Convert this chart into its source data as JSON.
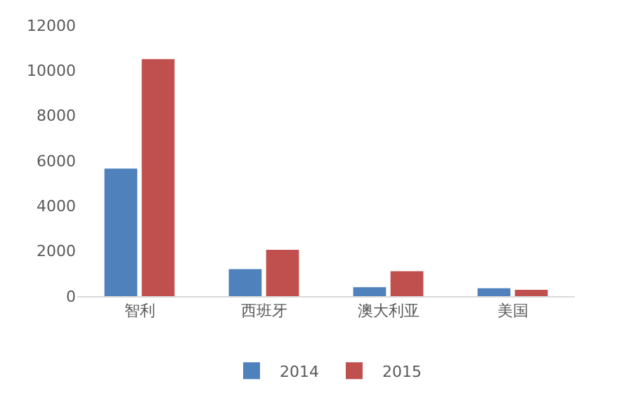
{
  "chart_data": {
    "type": "bar",
    "categories": [
      "智利",
      "西班牙",
      "澳大利亚",
      "美国"
    ],
    "series": [
      {
        "name": "2014",
        "color": "#4f81bd",
        "values": [
          5650,
          1200,
          400,
          350
        ]
      },
      {
        "name": "2015",
        "color": "#c0504d",
        "values": [
          10500,
          2050,
          1100,
          280
        ]
      }
    ],
    "ylim": [
      0,
      12000
    ],
    "yticks": [
      0,
      2000,
      4000,
      6000,
      8000,
      10000,
      12000
    ],
    "grid": false,
    "legend": "bottom"
  }
}
